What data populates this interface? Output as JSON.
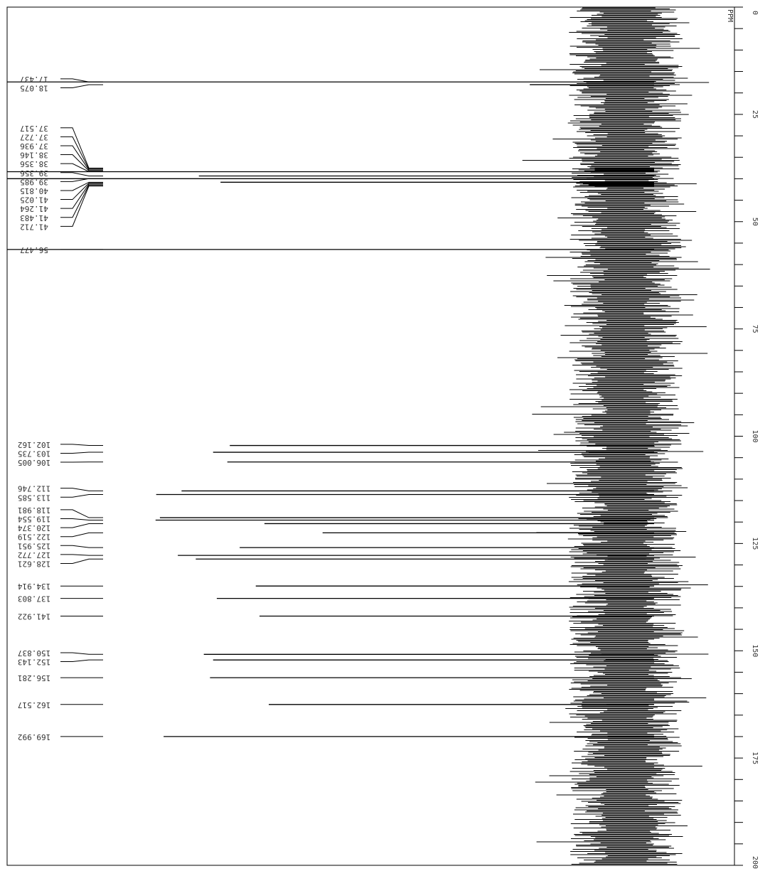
{
  "chart_data": {
    "type": "nmr",
    "y_label": "PPM",
    "ylim": [
      0,
      200
    ],
    "yticks": [
      0,
      25,
      50,
      75,
      100,
      125,
      150,
      175,
      200
    ],
    "minor_ticks": [
      5,
      10,
      15,
      20,
      30,
      35,
      40,
      45,
      55,
      60,
      65,
      70,
      80,
      85,
      90,
      95,
      105,
      110,
      115,
      120,
      130,
      135,
      140,
      145,
      155,
      160,
      165,
      170,
      180,
      185,
      190,
      195
    ],
    "xlim": [
      0,
      100
    ],
    "color": "#000000",
    "peaks": [
      17.437,
      18.075,
      37.517,
      37.727,
      37.936,
      38.146,
      38.356,
      39.356,
      39.985,
      40.815,
      41.025,
      41.264,
      41.483,
      41.712,
      56.477,
      102.162,
      103.735,
      106.005,
      112.746,
      113.585,
      118.981,
      119.554,
      120.374,
      122.519,
      125.951,
      127.772,
      128.621,
      134.914,
      137.803,
      141.922,
      150.837,
      152.143,
      156.281,
      162.517,
      169.992
    ],
    "intensities": [
      100,
      15.5,
      5,
      5,
      5,
      5,
      100,
      69,
      100,
      65.5,
      8,
      6,
      6,
      5,
      100,
      64,
      66.7,
      64.4,
      71.8,
      75.9,
      75.3,
      76,
      58.4,
      49,
      62.4,
      72.4,
      69.5,
      59.8,
      66.1,
      59.2,
      68.2,
      66.7,
      67.2,
      57.7,
      74.7
    ]
  }
}
